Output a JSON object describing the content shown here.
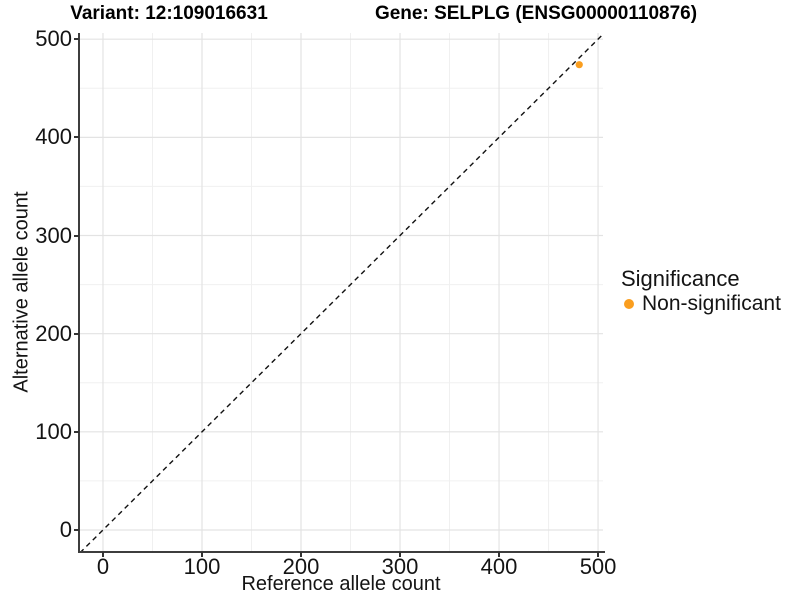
{
  "header": {
    "title_left": "Variant: 12:109016631",
    "title_right": "Gene: SELPLG (ENSG00000110876)"
  },
  "legend": {
    "title": "Significance",
    "items": [
      {
        "label": "Non-significant",
        "color": "#FA9E1F"
      }
    ]
  },
  "chart_data": {
    "type": "scatter",
    "xlabel": "Reference allele count",
    "ylabel": "Alternative allele count",
    "x_ticks": [
      0,
      100,
      200,
      300,
      400,
      500
    ],
    "y_ticks": [
      0,
      100,
      200,
      300,
      400,
      500
    ],
    "x_minor_ticks": [
      50,
      150,
      250,
      350,
      450
    ],
    "y_minor_ticks": [
      50,
      150,
      250,
      350,
      450
    ],
    "xlim": [
      -23.2,
      505
    ],
    "ylim": [
      -21.4,
      506.3
    ],
    "grid": true,
    "legend_position": "right",
    "reference_line": {
      "type": "identity",
      "slope": 1,
      "intercept": 0,
      "style": "dashed",
      "color": "#111111"
    },
    "series": [
      {
        "name": "Non-significant",
        "color": "#FA9E1F",
        "points": [
          {
            "x": 481,
            "y": 474
          }
        ]
      }
    ],
    "style": {
      "grid_major_color": "#E3E3E3",
      "grid_minor_color": "#F0F0F0",
      "axis_line_color": "#3d3d3d",
      "point_radius": 3.6
    }
  }
}
